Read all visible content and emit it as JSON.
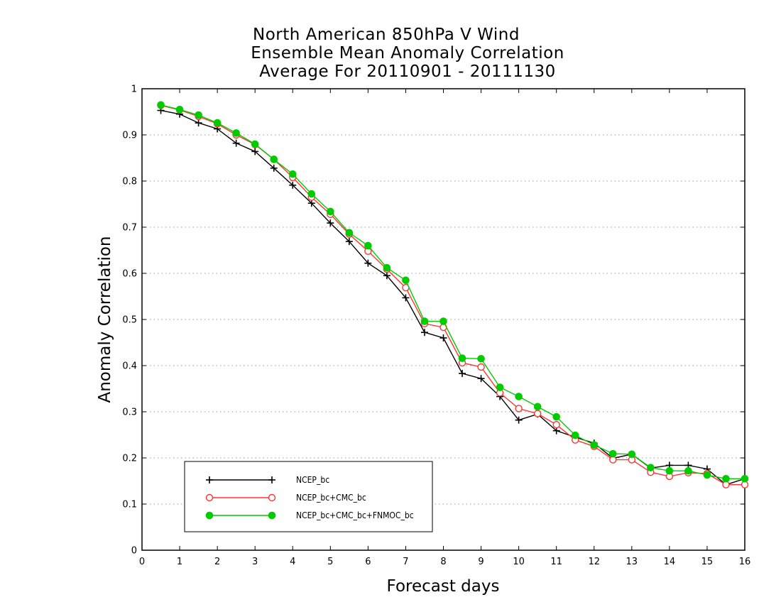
{
  "chart_data": {
    "type": "line",
    "title": [
      "North American 850hPa V Wind",
      "Ensemble Mean Anomaly Correlation",
      "Average For 20110901 - 20111130"
    ],
    "xlabel": "Forecast days",
    "ylabel": "Anomaly Correlation",
    "xlim": [
      0,
      16
    ],
    "ylim": [
      0,
      1
    ],
    "xticks": [
      "0",
      "1",
      "2",
      "3",
      "4",
      "5",
      "6",
      "7",
      "8",
      "9",
      "10",
      "11",
      "12",
      "13",
      "14",
      "15",
      "16"
    ],
    "yticks": [
      "0",
      "0.1",
      "0.2",
      "0.3",
      "0.4",
      "0.5",
      "0.6",
      "0.7",
      "0.8",
      "0.9",
      "1"
    ],
    "grid": "horizontal dotted",
    "legend_position": "bottom-left",
    "x": [
      0.5,
      1,
      1.5,
      2,
      2.5,
      3,
      3.5,
      4,
      4.5,
      5,
      5.5,
      6,
      6.5,
      7,
      7.5,
      8,
      8.5,
      9,
      9.5,
      10,
      10.5,
      11,
      11.5,
      12,
      12.5,
      13,
      13.5,
      14,
      14.5,
      15,
      15.5,
      16
    ],
    "series": [
      {
        "name": "NCEP_bc",
        "color": "#000000",
        "marker": "plus",
        "values": [
          0.953,
          0.945,
          0.926,
          0.913,
          0.882,
          0.864,
          0.828,
          0.791,
          0.752,
          0.709,
          0.669,
          0.622,
          0.595,
          0.547,
          0.472,
          0.46,
          0.383,
          0.372,
          0.333,
          0.282,
          0.295,
          0.259,
          0.245,
          0.232,
          0.199,
          0.208,
          0.178,
          0.184,
          0.184,
          0.176,
          0.142,
          0.155
        ]
      },
      {
        "name": "NCEP_bc+CMC_bc",
        "color": "#ff3333",
        "marker": "open-circle",
        "values": [
          0.964,
          0.954,
          0.94,
          0.924,
          0.9,
          0.879,
          0.847,
          0.808,
          0.765,
          0.728,
          0.685,
          0.648,
          0.609,
          0.569,
          0.491,
          0.483,
          0.406,
          0.397,
          0.341,
          0.307,
          0.296,
          0.272,
          0.239,
          0.225,
          0.196,
          0.196,
          0.169,
          0.16,
          0.168,
          0.166,
          0.142,
          0.142
        ]
      },
      {
        "name": "NCEP_bc+CMC_bc+FNMOC_bc",
        "color": "#00cc00",
        "marker": "filled-circle",
        "values": [
          0.965,
          0.955,
          0.943,
          0.926,
          0.904,
          0.88,
          0.847,
          0.815,
          0.772,
          0.734,
          0.688,
          0.66,
          0.612,
          0.585,
          0.496,
          0.496,
          0.416,
          0.415,
          0.353,
          0.333,
          0.311,
          0.289,
          0.249,
          0.228,
          0.209,
          0.208,
          0.179,
          0.172,
          0.172,
          0.163,
          0.155,
          0.155
        ]
      }
    ]
  }
}
